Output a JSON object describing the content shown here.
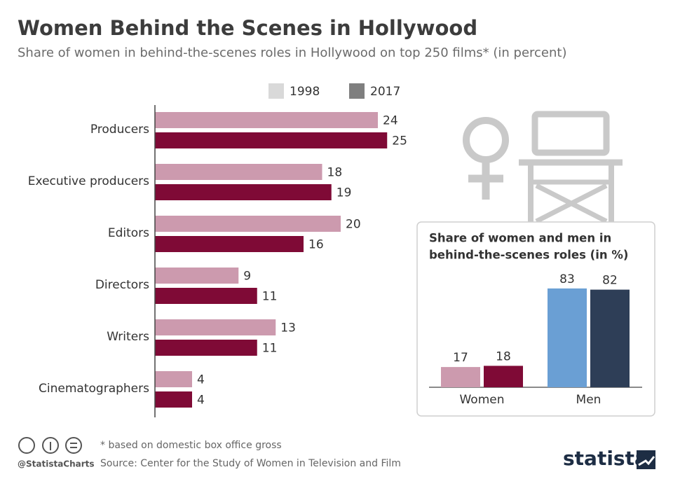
{
  "chart_data": [
    {
      "type": "hbar",
      "title": "Women Behind the Scenes in Hollywood",
      "subtitle": "Share of women in behind-the-scenes roles in Hollywood on top 250 films* (in percent)",
      "categories": [
        "Producers",
        "Executive producers",
        "Editors",
        "Directors",
        "Writers",
        "Cinematographers"
      ],
      "series": [
        {
          "name": "1998",
          "color": "#cc9aae",
          "values": [
            24,
            18,
            20,
            9,
            13,
            4
          ]
        },
        {
          "name": "2017",
          "color": "#7f0a36",
          "values": [
            25,
            19,
            16,
            11,
            11,
            4
          ]
        }
      ],
      "legend_colors": [
        "#d9d9d9",
        "#7f7f7f"
      ]
    },
    {
      "type": "bar",
      "title": [
        "Share of women and men in",
        "behind-the-scenes roles (in %)"
      ],
      "categories": [
        "Women",
        "Men"
      ],
      "series": [
        {
          "colors": [
            "#cc9aae",
            "#6a9fd4"
          ],
          "values": [
            17,
            83
          ]
        },
        {
          "colors": [
            "#7f0a36",
            "#2e3e57"
          ],
          "values": [
            18,
            82
          ]
        }
      ]
    }
  ],
  "footer": {
    "note": "* based on domestic box office gross",
    "source": "Source: Center for the Study of Women in Television and Film",
    "handle": "@StatistaCharts",
    "brand": "statista"
  }
}
